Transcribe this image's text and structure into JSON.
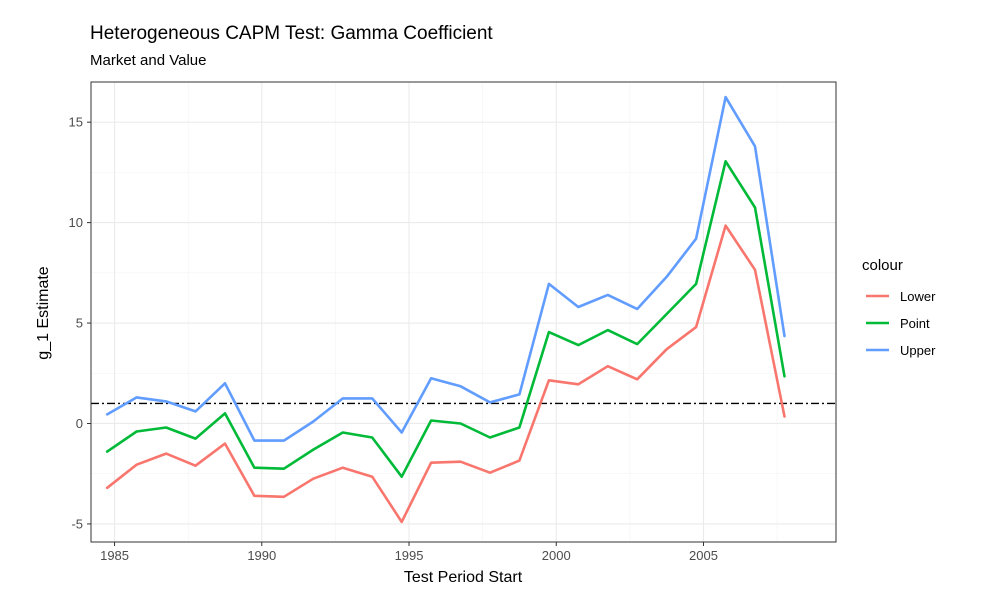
{
  "chart_data": {
    "type": "line",
    "title": "Heterogeneous CAPM Test: Gamma Coefficient",
    "subtitle": "Market and Value",
    "xlabel": "Test Period Start",
    "ylabel": "g_1 Estimate",
    "xlim": [
      1984.2,
      2009.5
    ],
    "ylim": [
      -5.9,
      17.0
    ],
    "x_ticks": [
      1985,
      1990,
      1995,
      2000,
      2005
    ],
    "y_ticks": [
      -5,
      0,
      5,
      10,
      15
    ],
    "x_tick_labels": [
      "1985",
      "1990",
      "1995",
      "2000",
      "2005"
    ],
    "y_tick_labels": [
      "-5",
      "0",
      "5",
      "10",
      "15"
    ],
    "grid": true,
    "legend_title": "colour",
    "legend_position": "right",
    "reference_line": {
      "y": 1,
      "style": "dashdot",
      "color": "#000000"
    },
    "x": [
      1984.75,
      1985.75,
      1986.75,
      1987.75,
      1988.75,
      1989.75,
      1990.75,
      1991.75,
      1992.75,
      1993.75,
      1994.75,
      1995.75,
      1996.75,
      1997.75,
      1998.75,
      1999.75,
      2000.75,
      2001.75,
      2002.75,
      2003.75,
      2004.75,
      2005.75,
      2006.75,
      2007.75
    ],
    "series": [
      {
        "name": "Lower",
        "color": "#F8766D",
        "values": [
          -3.2,
          -2.05,
          -1.5,
          -2.1,
          -1.0,
          -3.6,
          -3.65,
          -2.75,
          -2.2,
          -2.65,
          -4.9,
          -1.95,
          -1.9,
          -2.45,
          -1.85,
          2.15,
          1.95,
          2.85,
          2.2,
          3.7,
          4.8,
          9.85,
          7.65,
          0.35
        ]
      },
      {
        "name": "Point",
        "color": "#00BA38",
        "values": [
          -1.4,
          -0.4,
          -0.2,
          -0.75,
          0.5,
          -2.2,
          -2.25,
          -1.3,
          -0.45,
          -0.7,
          -2.65,
          0.15,
          0.0,
          -0.7,
          -0.2,
          4.55,
          3.9,
          4.65,
          3.95,
          5.45,
          6.95,
          13.05,
          10.75,
          2.35
        ]
      },
      {
        "name": "Upper",
        "color": "#619CFF",
        "values": [
          0.45,
          1.3,
          1.1,
          0.6,
          2.0,
          -0.85,
          -0.85,
          0.1,
          1.25,
          1.25,
          -0.45,
          2.25,
          1.85,
          1.05,
          1.45,
          6.95,
          5.8,
          6.4,
          5.7,
          7.3,
          9.2,
          16.25,
          13.8,
          4.35
        ]
      }
    ]
  }
}
